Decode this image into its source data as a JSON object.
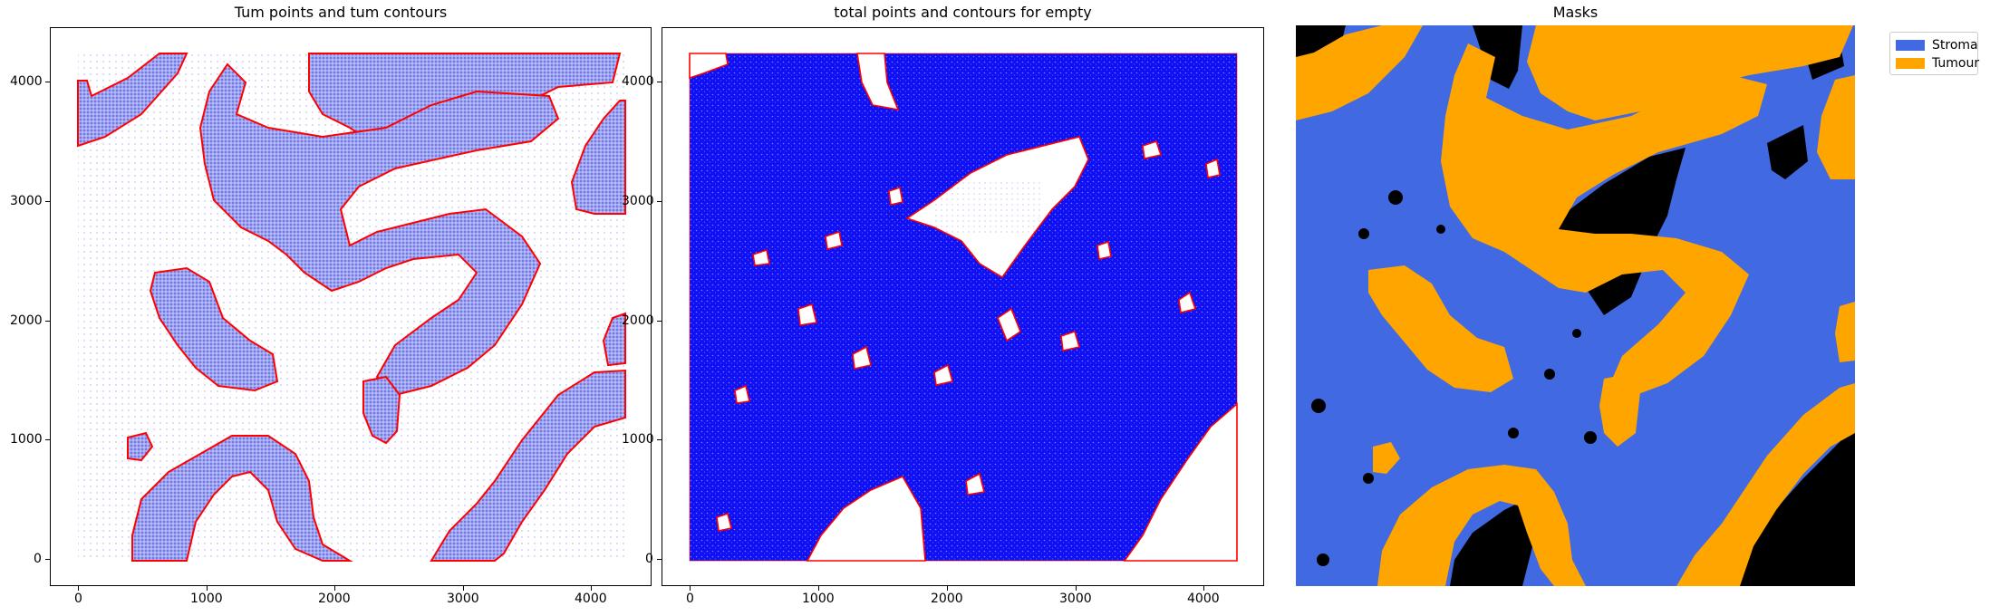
{
  "figure": {
    "panel1_title": "Tum points and tum contours",
    "panel2_title": "total points and contours for empty",
    "panel3_title": "Masks"
  },
  "axis_ticks": {
    "x": [
      "0",
      "1000",
      "2000",
      "3000",
      "4000"
    ],
    "y": [
      "0",
      "1000",
      "2000",
      "3000",
      "4000"
    ]
  },
  "legend": {
    "items": [
      {
        "label": "Stroma",
        "color": "#4169e1"
      },
      {
        "label": "Tumour",
        "color": "#ffa500"
      }
    ]
  },
  "colors": {
    "points": "#0000ff",
    "contour": "#ff0000",
    "empty": "#000000",
    "stroma": "#4169e1",
    "tumour": "#ffa500"
  },
  "chart_data": [
    {
      "type": "scatter",
      "title": "Tum points and tum contours",
      "xlabel": "",
      "ylabel": "",
      "xlim": [
        -220,
        4480
      ],
      "ylim": [
        -220,
        4480
      ],
      "x_ticks": [
        0,
        1000,
        2000,
        3000,
        4000
      ],
      "y_ticks": [
        0,
        1000,
        2000,
        3000,
        4000
      ],
      "series": [
        {
          "kind": "points",
          "color": "#0000ff",
          "density": "sparse"
        },
        {
          "kind": "contours",
          "color": "#ff0000"
        }
      ]
    },
    {
      "type": "scatter",
      "title": "total points and contours for empty",
      "xlabel": "",
      "ylabel": "",
      "xlim": [
        -220,
        4480
      ],
      "ylim": [
        -220,
        4480
      ],
      "x_ticks": [
        0,
        1000,
        2000,
        3000,
        4000
      ],
      "y_ticks": [
        0,
        1000,
        2000,
        3000,
        4000
      ],
      "series": [
        {
          "kind": "points",
          "color": "#0000ff",
          "density": "dense"
        },
        {
          "kind": "contours",
          "color": "#ff0000"
        }
      ]
    },
    {
      "type": "heatmap",
      "title": "Masks",
      "categories": [
        "Stroma",
        "Tumour"
      ],
      "colors": {
        "Stroma": "#4169e1",
        "Tumour": "#ffa500",
        "empty": "#000000"
      },
      "legend_position": "upper-right outside"
    }
  ]
}
